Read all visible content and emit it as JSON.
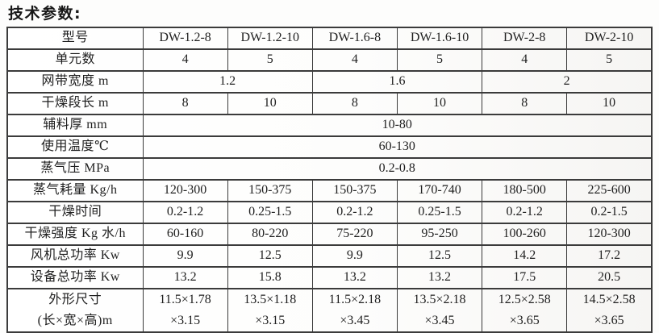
{
  "page": {
    "title": "技术参数:"
  },
  "table": {
    "header": {
      "label": "型号",
      "models": [
        "DW-1.2-8",
        "DW-1.2-10",
        "DW-1.6-8",
        "DW-1.6-10",
        "DW-2-8",
        "DW-2-10"
      ]
    },
    "rows": [
      {
        "label": "单元数",
        "values": [
          "4",
          "5",
          "4",
          "5",
          "4",
          "5"
        ]
      },
      {
        "label": "网带宽度 m",
        "values": [
          "1.2",
          "1.6",
          "2"
        ]
      },
      {
        "label": "干燥段长 m",
        "values": [
          "8",
          "10",
          "8",
          "10",
          "8",
          "10"
        ]
      },
      {
        "label": "辅料厚 mm",
        "values": [
          "10-80"
        ]
      },
      {
        "label": "使用温度℃",
        "values": [
          "60-130"
        ]
      },
      {
        "label": "蒸气压 MPa",
        "values": [
          "0.2-0.8"
        ]
      },
      {
        "label": "蒸气耗量 Kg/h",
        "values": [
          "120-300",
          "150-375",
          "150-375",
          "170-740",
          "180-500",
          "225-600"
        ]
      },
      {
        "label": "干燥时间",
        "values": [
          "0.2-1.2",
          "0.25-1.5",
          "0.2-1.2",
          "0.25-1.5",
          "0.2-1.2",
          "0.2-1.5"
        ]
      },
      {
        "label": "干燥强度 Kg 水/h",
        "values": [
          "60-160",
          "80-220",
          "75-220",
          "95-250",
          "100-260",
          "120-300"
        ]
      },
      {
        "label": "风机总功率 Kw",
        "values": [
          "9.9",
          "12.5",
          "9.9",
          "12.5",
          "14.2",
          "17.2"
        ]
      },
      {
        "label": "设备总功率 Kw",
        "values": [
          "13.2",
          "15.8",
          "13.2",
          "13.2",
          "17.5",
          "20.5"
        ]
      },
      {
        "label": "外形尺寸\n(长×宽×高)m",
        "values": [
          "11.5×1.78\n×3.15",
          "13.5×1.18\n×3.15",
          "11.5×2.18\n×3.45",
          "13.5×2.18\n×3.45",
          "12.5×2.58\n×3.65",
          "14.5×2.58\n×3.65"
        ]
      }
    ]
  }
}
